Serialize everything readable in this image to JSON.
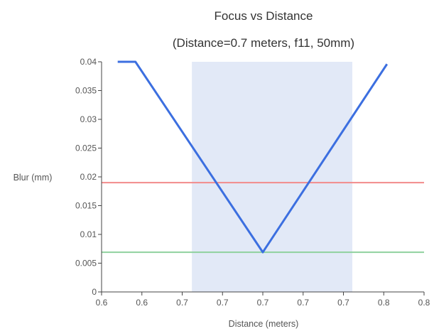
{
  "chart_data": {
    "type": "line",
    "title": "Focus vs Distance",
    "subtitle": "(Distance=0.7 meters, f11, 50mm)",
    "xlabel": "Distance (meters)",
    "ylabel": "Blur (mm)",
    "xlim": [
      0.6,
      0.8
    ],
    "ylim": [
      0,
      0.04
    ],
    "x_tick_values": [
      0.6,
      0.625,
      0.65,
      0.675,
      0.7,
      0.725,
      0.75,
      0.775,
      0.8
    ],
    "x_tick_labels": [
      "0.6",
      "0.6",
      "0.7",
      "0.7",
      "0.7",
      "0.7",
      "0.7",
      "0.8",
      "0.8"
    ],
    "y_ticks": [
      0,
      0.005,
      0.01,
      0.015,
      0.02,
      0.025,
      0.03,
      0.035,
      0.04
    ],
    "y_tick_labels": [
      "0",
      "0.005",
      "0.01",
      "0.015",
      "0.02",
      "0.025",
      "0.03",
      "0.035",
      "0.04"
    ],
    "series": [
      {
        "color": "#3c6fe0",
        "x": [
          0.61,
          0.621,
          0.7,
          0.777
        ],
        "y": [
          0.04,
          0.04,
          0.0069,
          0.0396
        ]
      }
    ],
    "shaded_x_range": [
      0.656,
      0.7555
    ],
    "shaded_color": "#e2e9f7",
    "reference_lines": [
      {
        "y": 0.019,
        "color": "#f28b8b"
      },
      {
        "y": 0.0069,
        "color": "#8fd19e"
      }
    ],
    "grid": false
  }
}
